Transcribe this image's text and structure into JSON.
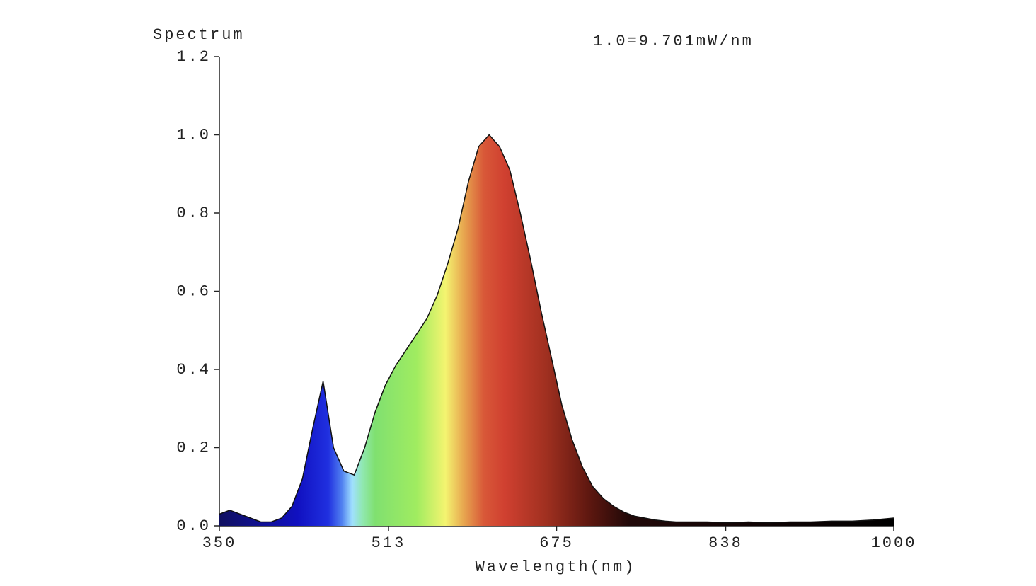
{
  "chart_data": {
    "type": "area",
    "title": "Spectrum",
    "annotation": "1.0=9.701mW/nm",
    "x_label": "Wavelength(nm)",
    "x": [
      350,
      360,
      370,
      380,
      390,
      400,
      410,
      420,
      430,
      440,
      450,
      460,
      470,
      480,
      490,
      500,
      510,
      520,
      530,
      540,
      550,
      560,
      570,
      580,
      590,
      600,
      610,
      620,
      630,
      640,
      650,
      660,
      670,
      680,
      690,
      700,
      710,
      720,
      730,
      740,
      750,
      760,
      770,
      780,
      790,
      800,
      820,
      840,
      860,
      880,
      900,
      920,
      940,
      960,
      980,
      1000
    ],
    "values": [
      0.03,
      0.04,
      0.03,
      0.02,
      0.01,
      0.01,
      0.02,
      0.05,
      0.12,
      0.25,
      0.37,
      0.2,
      0.14,
      0.13,
      0.2,
      0.29,
      0.36,
      0.41,
      0.45,
      0.49,
      0.53,
      0.59,
      0.67,
      0.76,
      0.88,
      0.97,
      1.0,
      0.97,
      0.91,
      0.8,
      0.68,
      0.55,
      0.43,
      0.31,
      0.22,
      0.15,
      0.1,
      0.07,
      0.05,
      0.035,
      0.025,
      0.02,
      0.015,
      0.012,
      0.01,
      0.01,
      0.01,
      0.008,
      0.01,
      0.008,
      0.01,
      0.01,
      0.012,
      0.012,
      0.015,
      0.02
    ],
    "line_color": "#111111",
    "xlim": [
      350,
      1000
    ],
    "ylim": [
      0,
      1.2
    ],
    "xticks": [
      350,
      513,
      675,
      838,
      1000
    ],
    "yticks": [
      {
        "value": 0,
        "label": "0.0"
      },
      0.2,
      0.4,
      0.6,
      0.8,
      {
        "value": 1,
        "label": "1.0"
      },
      1.2
    ]
  }
}
